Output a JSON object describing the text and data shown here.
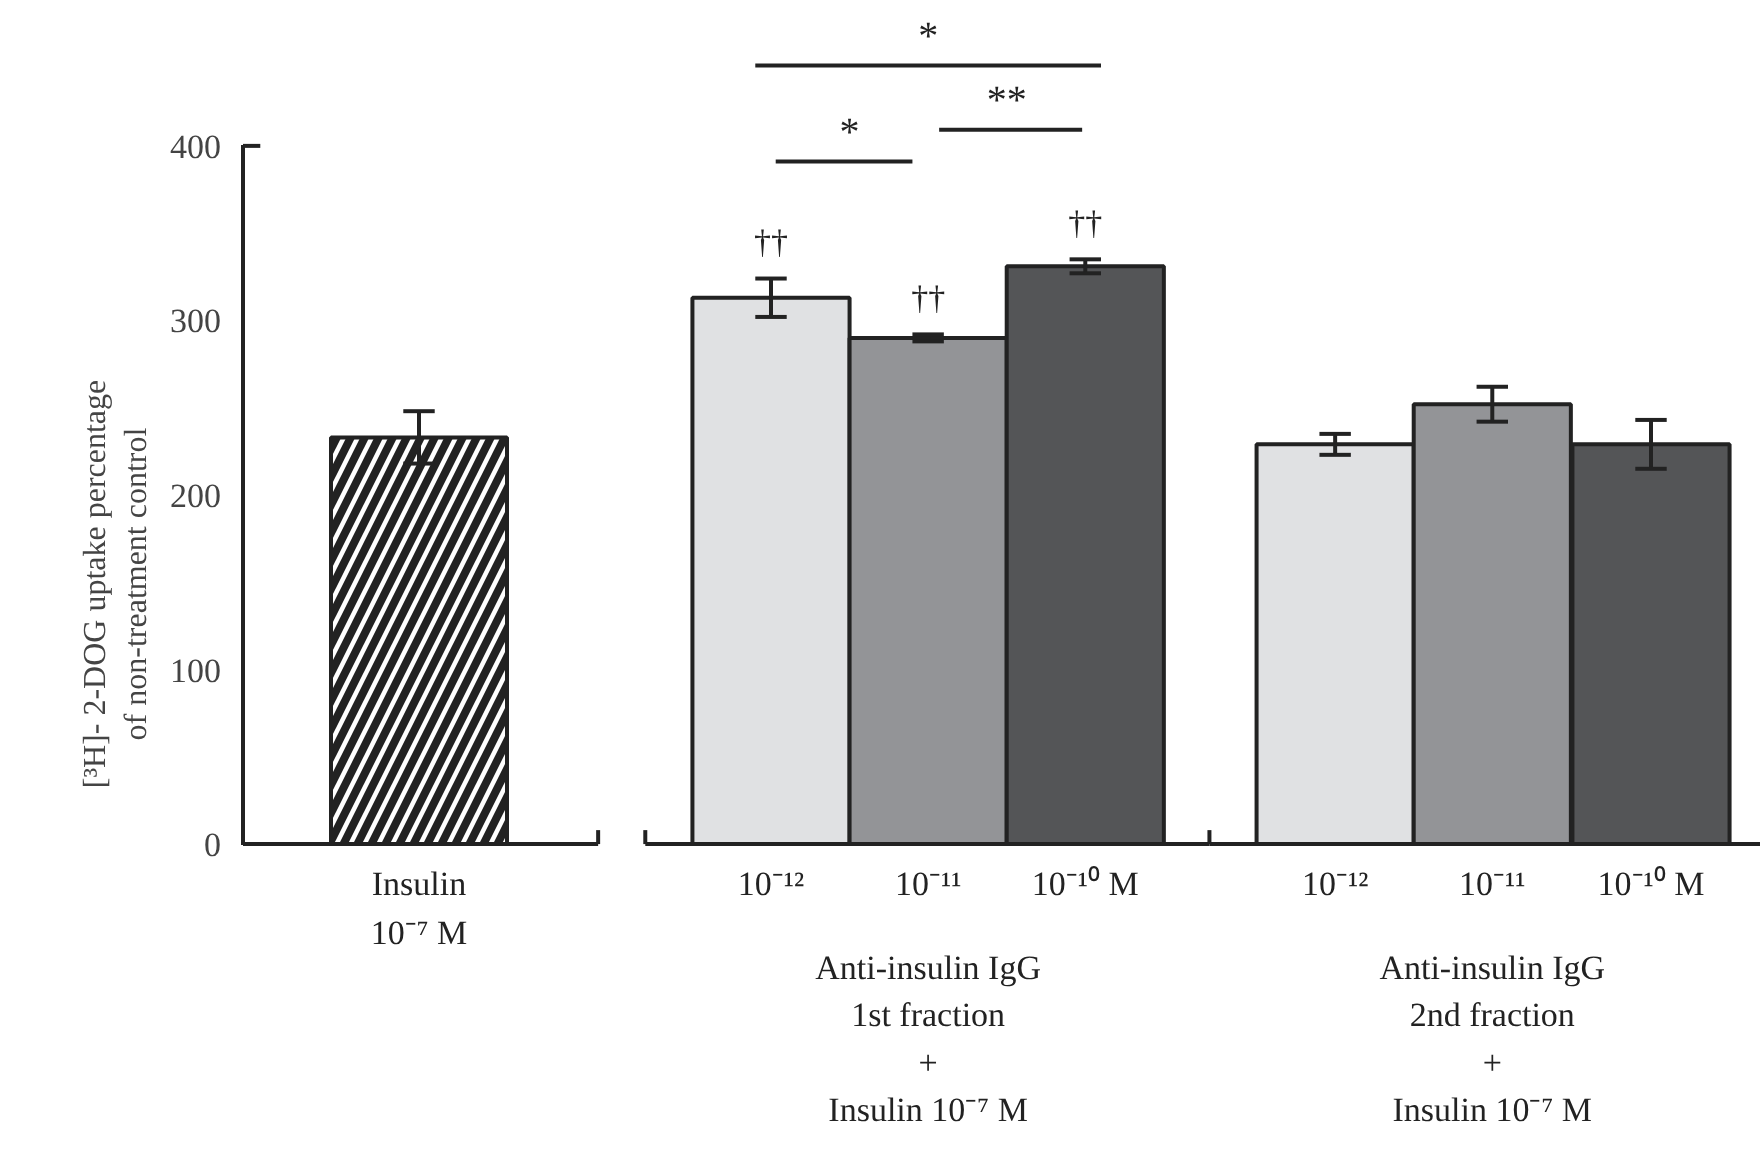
{
  "chart_data": {
    "type": "bar",
    "ylabel": "[³H]- 2-DOG uptake percentage\nof non-treatment control",
    "categories": [
      "Insulin\n10⁻⁷ M",
      "10⁻¹²",
      "10⁻¹¹",
      "10⁻¹⁰ M",
      "10⁻¹²",
      "10⁻¹¹",
      "10⁻¹⁰ M"
    ],
    "values": [
      233,
      313,
      290,
      331,
      229,
      252,
      229
    ],
    "errors": [
      15,
      11,
      2,
      4,
      6,
      10,
      14
    ],
    "colors": [
      "#ffffff",
      "#e0e1e3",
      "#939497",
      "#545557",
      "#e0e1e3",
      "#939497",
      "#545557"
    ],
    "ylim": [
      0,
      400
    ],
    "yticks": [
      0,
      100,
      200,
      300,
      400
    ],
    "grid": false,
    "annotations": [
      "*",
      "*",
      "**",
      "††",
      "††",
      "††",
      "Anti-insulin IgG\n1st fraction\n+\nInsulin 10⁻⁷ M",
      "Anti-insulin IgG\n2nd fraction\n+\nInsulin 10⁻⁷ M"
    ]
  }
}
